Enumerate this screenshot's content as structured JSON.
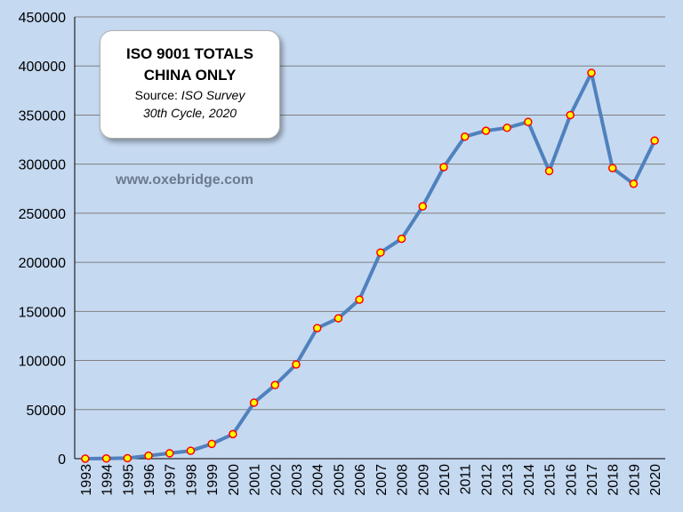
{
  "chart_data": {
    "type": "line",
    "title_lines": [
      "ISO 9001 TOTALS",
      "CHINA ONLY"
    ],
    "source_prefix": "Source: ",
    "source_name": "ISO Survey",
    "source_cycle": "30th Cycle, 2020",
    "watermark": "www.oxebridge.com",
    "x": [
      "1993",
      "1994",
      "1995",
      "1996",
      "1997",
      "1998",
      "1999",
      "2000",
      "2001",
      "2002",
      "2003",
      "2004",
      "2005",
      "2006",
      "2007",
      "2008",
      "2009",
      "2010",
      "2011",
      "2012",
      "2013",
      "2014",
      "2015",
      "2016",
      "2017",
      "2018",
      "2019",
      "2020"
    ],
    "values": [
      0,
      200,
      500,
      3000,
      5500,
      8000,
      15000,
      25000,
      57000,
      75000,
      96000,
      133000,
      143000,
      162000,
      210000,
      224000,
      257000,
      297000,
      328000,
      334000,
      337000,
      343000,
      293000,
      350000,
      393000,
      296000,
      280000,
      324000
    ],
    "ylim": [
      0,
      450000
    ],
    "yticks": [
      "0",
      "50000",
      "100000",
      "150000",
      "200000",
      "250000",
      "300000",
      "350000",
      "400000",
      "450000"
    ],
    "grid": true,
    "colors": {
      "background": "#c5d9f1",
      "line": "#4f81bd",
      "marker_fill": "#ffff00",
      "marker_edge": "#ff0000",
      "grid": "#7f7f7f"
    }
  }
}
